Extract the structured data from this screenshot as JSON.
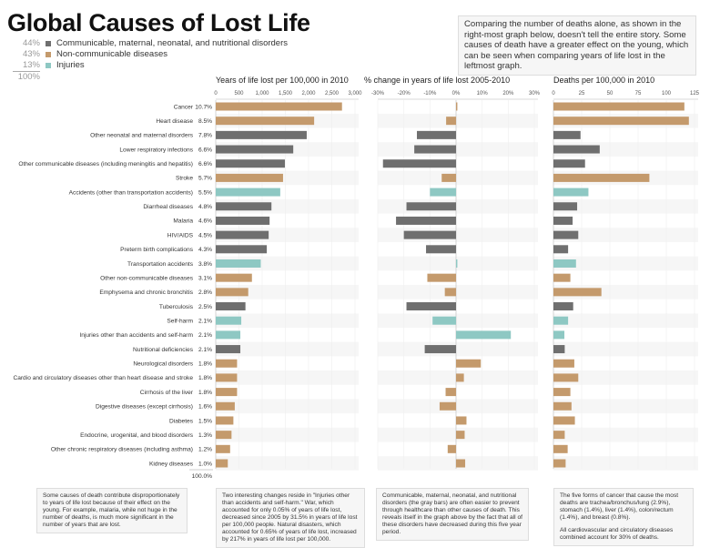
{
  "title": "Global Causes of Lost Life",
  "legend": [
    {
      "pct": "44%",
      "label": "Communicable, maternal, neonatal, and nutritional disorders",
      "group": "communicable"
    },
    {
      "pct": "43%",
      "label": "Non-communicable diseases",
      "group": "noncommunicable"
    },
    {
      "pct": "13%",
      "label": "Injuries",
      "group": "injuries"
    }
  ],
  "legend_total": "100%",
  "colors": {
    "communicable": "#6f6f6f",
    "noncommunicable": "#c49a6c",
    "injuries": "#8ec8c3",
    "row_band": "#f6f6f6"
  },
  "intro": "Comparing the number of deaths alone, as shown in the right-most graph below, doesn't tell the entire story. Some causes of death have a greater effect on the young, which can be seen when comparing years of life lost in the leftmost graph.",
  "share_total": "100.0%",
  "causes": [
    {
      "name": "Cancer",
      "share": "10.7%",
      "group": "noncommunicable"
    },
    {
      "name": "Heart disease",
      "share": "8.5%",
      "group": "noncommunicable"
    },
    {
      "name": "Other neonatal and maternal disorders",
      "share": "7.8%",
      "group": "communicable"
    },
    {
      "name": "Lower respiratory infections",
      "share": "6.6%",
      "group": "communicable"
    },
    {
      "name": "Other communicable diseases (including meningitis and hepatitis)",
      "share": "6.6%",
      "group": "communicable"
    },
    {
      "name": "Stroke",
      "share": "5.7%",
      "group": "noncommunicable"
    },
    {
      "name": "Accidents (other than transportation accidents)",
      "share": "5.5%",
      "group": "injuries"
    },
    {
      "name": "Diarrheal diseases",
      "share": "4.8%",
      "group": "communicable"
    },
    {
      "name": "Malaria",
      "share": "4.6%",
      "group": "communicable"
    },
    {
      "name": "HIV/AIDS",
      "share": "4.5%",
      "group": "communicable"
    },
    {
      "name": "Preterm birth complications",
      "share": "4.3%",
      "group": "communicable"
    },
    {
      "name": "Transportation accidents",
      "share": "3.8%",
      "group": "injuries"
    },
    {
      "name": "Other non-communicable diseases",
      "share": "3.1%",
      "group": "noncommunicable"
    },
    {
      "name": "Emphysema and chronic bronchitis",
      "share": "2.8%",
      "group": "noncommunicable"
    },
    {
      "name": "Tuberculosis",
      "share": "2.5%",
      "group": "communicable"
    },
    {
      "name": "Self-harm",
      "share": "2.1%",
      "group": "injuries"
    },
    {
      "name": "Injuries other than accidents and self-harm",
      "share": "2.1%",
      "group": "injuries"
    },
    {
      "name": "Nutritional deficiencies",
      "share": "2.1%",
      "group": "communicable"
    },
    {
      "name": "Neurological disorders",
      "share": "1.8%",
      "group": "noncommunicable"
    },
    {
      "name": "Cardio and circulatory diseases other than heart disease and stroke",
      "share": "1.8%",
      "group": "noncommunicable"
    },
    {
      "name": "Cirrhosis of the liver",
      "share": "1.8%",
      "group": "noncommunicable"
    },
    {
      "name": "Digestive diseases (except cirrhosis)",
      "share": "1.6%",
      "group": "noncommunicable"
    },
    {
      "name": "Diabetes",
      "share": "1.5%",
      "group": "noncommunicable"
    },
    {
      "name": "Endocrine, urogenital, and blood disorders",
      "share": "1.3%",
      "group": "noncommunicable"
    },
    {
      "name": "Other chronic respiratory diseases (including asthma)",
      "share": "1.2%",
      "group": "noncommunicable"
    },
    {
      "name": "Kidney diseases",
      "share": "1.0%",
      "group": "noncommunicable"
    }
  ],
  "chart_data": [
    {
      "type": "bar",
      "orientation": "horizontal",
      "title": "Years of life lost per 100,000 in 2010",
      "xlim": [
        0,
        3000
      ],
      "ticks": [
        0,
        500,
        1000,
        1500,
        2000,
        2500,
        3000
      ],
      "tick_labels": [
        "0",
        "500",
        "1,000",
        "1,500",
        "2,000",
        "2,500",
        "3,000"
      ],
      "values": [
        2720,
        2120,
        1960,
        1670,
        1490,
        1450,
        1390,
        1200,
        1160,
        1140,
        1100,
        970,
        780,
        700,
        640,
        550,
        530,
        530,
        460,
        460,
        460,
        410,
        380,
        340,
        310,
        260
      ]
    },
    {
      "type": "bar",
      "orientation": "horizontal",
      "title": "% change  in years of life lost 2005-2010",
      "xlim": [
        -30,
        30
      ],
      "ticks": [
        -30,
        -20,
        -10,
        0,
        10,
        20,
        30
      ],
      "tick_labels": [
        "-30%",
        "-20%",
        "-10%",
        "0%",
        "10%",
        "20%",
        "30%"
      ],
      "values": [
        0.5,
        -3.8,
        -15,
        -16,
        -28,
        -5.5,
        -10,
        -19,
        -23,
        -20,
        -11.5,
        0.5,
        -11,
        -4.3,
        -19,
        -9,
        21,
        -12,
        9.5,
        3,
        -4,
        -6.3,
        4,
        3.3,
        -3.2,
        3.5
      ]
    },
    {
      "type": "bar",
      "orientation": "horizontal",
      "title": "Deaths per 100,000 in 2010",
      "xlim": [
        0,
        125
      ],
      "ticks": [
        0,
        25,
        50,
        75,
        100,
        125
      ],
      "tick_labels": [
        "0",
        "25",
        "50",
        "75",
        "100",
        "125"
      ],
      "values": [
        116,
        120,
        24,
        41,
        28,
        85,
        31,
        21,
        17,
        22,
        13,
        20,
        15,
        42.5,
        17.5,
        13,
        9.7,
        10,
        18.5,
        22,
        15,
        16,
        19,
        10,
        12.6,
        10.8
      ]
    }
  ],
  "notes": [
    "Some causes of death contribute disproportionately to years of life lost because of their effect on the young. For example, malaria, while not huge in the number of deaths, is much more significant in the number of years that are lost.",
    "Two interesting changes reside in \"Injuries other than accidents and self-harm.\" War, which accounted for only 0.05% of years of life lost, decreased since 2005 by 31.5% in years of life lost per 100,000 people. Natural disasters, which accounted for 0.65% of years of life lost, increased by 217% in years of life lost per 100,000.",
    "Communicable, maternal, neonatal, and nutritional disorders (the gray bars) are often easier to prevent through healthcare than other causes of death. This reveals itself in the graph above by the fact that all of these disorders have decreased during this five year period.",
    "The five forms of cancer that cause the most deaths are trachea/bronchus/lung (2.9%), stomach (1.4%), liver (1.4%), colon/rectum (1.4%), and breast (0.8%).",
    "All cardiovascular and circulatory diseases combined account for 30% of deaths."
  ]
}
